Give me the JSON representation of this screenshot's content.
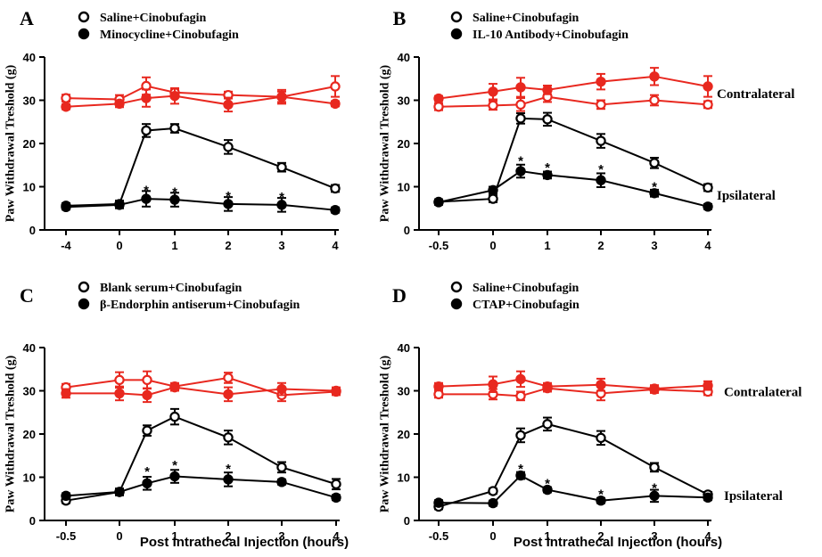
{
  "figure": {
    "xlabel": "Post Intrathecal Injection (hours)"
  },
  "chart_data": [
    {
      "type": "line",
      "panel_letter": "A",
      "ylabel": "Paw Withdrawal Treshold (g)",
      "ylim": [
        0,
        40
      ],
      "y_ticks": [
        "0",
        "10",
        "20",
        "30",
        "40"
      ],
      "x_tick_labels": [
        "-4",
        "0",
        "1",
        "2",
        "3",
        "4"
      ],
      "legend": [
        {
          "marker": "open-circle",
          "label": "Saline+Cinobufagin"
        },
        {
          "marker": "filled-circle",
          "label": "Minocycline+Cinobufagin"
        }
      ],
      "side_labels": [],
      "series": [
        {
          "name": "Saline+Cinobufagin",
          "side": "contralateral",
          "color": "#e8281f",
          "marker": "open-circle",
          "x": [
            -4,
            0,
            0.5,
            1,
            2,
            3,
            4
          ],
          "y": [
            30.5,
            30.2,
            33.3,
            31.8,
            31.2,
            30.8,
            33.2
          ],
          "err": [
            0.8,
            1.0,
            2.0,
            0.8,
            0.8,
            1.2,
            2.4
          ]
        },
        {
          "name": "Minocycline+Cinobufagin",
          "side": "contralateral",
          "color": "#e8281f",
          "marker": "filled-circle",
          "x": [
            -4,
            0,
            0.5,
            1,
            2,
            3,
            4
          ],
          "y": [
            28.5,
            29.2,
            30.5,
            31.0,
            29.0,
            30.8,
            29.2
          ],
          "err": [
            0.6,
            0.8,
            2.0,
            1.8,
            1.6,
            1.6,
            0.6
          ]
        },
        {
          "name": "Saline+Cinobufagin",
          "side": "ipsilateral",
          "color": "#000000",
          "marker": "open-circle",
          "x": [
            -4,
            0,
            0.5,
            1,
            2,
            3,
            4
          ],
          "y": [
            5.6,
            6.0,
            23.0,
            23.5,
            19.2,
            14.5,
            9.6
          ],
          "err": [
            0.6,
            0.8,
            1.5,
            1.0,
            1.6,
            1.0,
            0.8
          ]
        },
        {
          "name": "Minocycline+Cinobufagin",
          "side": "ipsilateral",
          "color": "#000000",
          "marker": "filled-circle",
          "x": [
            -4,
            0,
            0.5,
            1,
            2,
            3,
            4
          ],
          "y": [
            5.3,
            5.8,
            7.2,
            7.0,
            6.0,
            5.8,
            4.6
          ],
          "err": [
            0.6,
            0.8,
            1.8,
            1.6,
            1.6,
            1.6,
            0.6
          ]
        }
      ],
      "significance_marks": [
        {
          "x": 0.5,
          "y": 9.4,
          "text": "*"
        },
        {
          "x": 1,
          "y": 9.0,
          "text": "*"
        },
        {
          "x": 2,
          "y": 8.0,
          "text": "*"
        },
        {
          "x": 3,
          "y": 7.8,
          "text": "*"
        }
      ]
    },
    {
      "type": "line",
      "panel_letter": "B",
      "ylabel": "Paw Withdrawal Treshold (g)",
      "ylim": [
        0,
        40
      ],
      "y_ticks": [
        "0",
        "10",
        "20",
        "30",
        "40"
      ],
      "x_tick_labels": [
        "-0.5",
        "0",
        "1",
        "2",
        "3",
        "4"
      ],
      "legend": [
        {
          "marker": "open-circle",
          "label": "Saline+Cinobufagin"
        },
        {
          "marker": "filled-circle",
          "label": "IL-10 Antibody+Cinobufagin"
        }
      ],
      "side_labels": [
        {
          "text": "Contralateral",
          "y": 31.5
        },
        {
          "text": "Ipsilateral",
          "y": 8.0
        }
      ],
      "series": [
        {
          "name": "Saline+Cinobufagin",
          "side": "contralateral",
          "color": "#e8281f",
          "marker": "open-circle",
          "x": [
            -0.5,
            0,
            0.5,
            1,
            2,
            3,
            4
          ],
          "y": [
            28.5,
            28.8,
            29.0,
            30.8,
            29.0,
            30.0,
            29.0
          ],
          "err": [
            0.8,
            1.0,
            1.5,
            1.2,
            1.0,
            1.2,
            0.8
          ]
        },
        {
          "name": "IL-10 Antibody+Cinobufagin",
          "side": "contralateral",
          "color": "#e8281f",
          "marker": "filled-circle",
          "x": [
            -0.5,
            0,
            0.5,
            1,
            2,
            3,
            4
          ],
          "y": [
            30.4,
            32.0,
            33.0,
            32.4,
            34.3,
            35.5,
            33.2
          ],
          "err": [
            0.6,
            1.8,
            2.2,
            1.0,
            1.8,
            2.0,
            2.4
          ]
        },
        {
          "name": "Saline+Cinobufagin",
          "side": "ipsilateral",
          "color": "#000000",
          "marker": "open-circle",
          "x": [
            -0.5,
            0,
            0.5,
            1,
            2,
            3,
            4
          ],
          "y": [
            6.5,
            7.2,
            25.8,
            25.6,
            20.6,
            15.5,
            9.8
          ],
          "err": [
            0.6,
            0.8,
            1.2,
            1.5,
            1.6,
            1.2,
            0.8
          ]
        },
        {
          "name": "IL-10 Antibody+Cinobufagin",
          "side": "ipsilateral",
          "color": "#000000",
          "marker": "filled-circle",
          "x": [
            -0.5,
            0,
            0.5,
            1,
            2,
            3,
            4
          ],
          "y": [
            6.4,
            9.2,
            13.6,
            12.7,
            11.5,
            8.5,
            5.4
          ],
          "err": [
            0.6,
            0.8,
            1.5,
            0.8,
            1.6,
            0.8,
            0.6
          ]
        }
      ],
      "significance_marks": [
        {
          "x": 0.5,
          "y": 16.2,
          "text": "*"
        },
        {
          "x": 1,
          "y": 14.6,
          "text": "*"
        },
        {
          "x": 2,
          "y": 14.2,
          "text": "*"
        },
        {
          "x": 3,
          "y": 10.2,
          "text": "*"
        }
      ]
    },
    {
      "type": "line",
      "panel_letter": "C",
      "ylabel": "Paw Withdrawal Treshold (g)",
      "ylim": [
        0,
        40
      ],
      "y_ticks": [
        "0",
        "10",
        "20",
        "30",
        "40"
      ],
      "x_tick_labels": [
        "-0.5",
        "0",
        "1",
        "2",
        "3",
        "4"
      ],
      "legend": [
        {
          "marker": "open-circle",
          "label": "Blank serum+Cinobufagin"
        },
        {
          "marker": "filled-circle",
          "label": "β-Endorphin antiserum+Cinobufagin"
        }
      ],
      "side_labels": [],
      "series": [
        {
          "name": "Blank serum+Cinobufagin",
          "side": "contralateral",
          "color": "#e8281f",
          "marker": "open-circle",
          "x": [
            -0.5,
            0,
            0.5,
            1,
            2,
            3,
            4
          ],
          "y": [
            30.8,
            32.5,
            32.5,
            31.0,
            33.0,
            29.0,
            29.8
          ],
          "err": [
            0.8,
            1.8,
            2.0,
            0.8,
            1.2,
            1.4,
            0.8
          ]
        },
        {
          "name": "β-Endorphin antiserum+Cinobufagin",
          "side": "contralateral",
          "color": "#e8281f",
          "marker": "filled-circle",
          "x": [
            -0.5,
            0,
            0.5,
            1,
            2,
            3,
            4
          ],
          "y": [
            29.4,
            29.4,
            29.0,
            30.8,
            29.2,
            30.4,
            30.0
          ],
          "err": [
            1.0,
            1.6,
            1.6,
            0.8,
            1.6,
            1.4,
            0.8
          ]
        },
        {
          "name": "Blank serum+Cinobufagin",
          "side": "ipsilateral",
          "color": "#000000",
          "marker": "open-circle",
          "x": [
            -0.5,
            0,
            0.5,
            1,
            2,
            3,
            4
          ],
          "y": [
            4.6,
            6.6,
            20.8,
            24.0,
            19.2,
            12.3,
            8.4
          ],
          "err": [
            0.6,
            0.8,
            1.2,
            1.8,
            1.6,
            1.2,
            1.2
          ]
        },
        {
          "name": "β-Endorphin antiserum+Cinobufagin",
          "side": "ipsilateral",
          "color": "#000000",
          "marker": "filled-circle",
          "x": [
            -0.5,
            0,
            0.5,
            1,
            2,
            3,
            4
          ],
          "y": [
            5.7,
            6.6,
            8.6,
            10.2,
            9.5,
            8.9,
            5.3
          ],
          "err": [
            0.6,
            0.6,
            1.5,
            1.5,
            1.6,
            0.6,
            0.6
          ]
        }
      ],
      "significance_marks": [
        {
          "x": 0.5,
          "y": 11.5,
          "text": "*"
        },
        {
          "x": 1,
          "y": 13.0,
          "text": "*"
        },
        {
          "x": 2,
          "y": 12.2,
          "text": "*"
        }
      ]
    },
    {
      "type": "line",
      "panel_letter": "D",
      "ylabel": "Paw Withdrawal Treshold (g)",
      "ylim": [
        0,
        40
      ],
      "y_ticks": [
        "0",
        "10",
        "20",
        "30",
        "40"
      ],
      "x_tick_labels": [
        "-0.5",
        "0",
        "1",
        "2",
        "3",
        "4"
      ],
      "legend": [
        {
          "marker": "open-circle",
          "label": "Saline+Cinobufagin"
        },
        {
          "marker": "filled-circle",
          "label": "CTAP+Cinobufagin"
        }
      ],
      "side_labels": [
        {
          "text": "Contralateral",
          "y": 29.8
        },
        {
          "text": "Ipsilateral",
          "y": 5.8
        }
      ],
      "series": [
        {
          "name": "Saline+Cinobufagin",
          "side": "contralateral",
          "color": "#e8281f",
          "marker": "open-circle",
          "x": [
            -0.5,
            0,
            0.5,
            1,
            2,
            3,
            4
          ],
          "y": [
            29.2,
            29.2,
            28.8,
            30.6,
            29.4,
            30.3,
            29.8
          ],
          "err": [
            0.8,
            1.2,
            1.0,
            0.8,
            1.6,
            0.8,
            0.8
          ]
        },
        {
          "name": "CTAP+Cinobufagin",
          "side": "contralateral",
          "color": "#e8281f",
          "marker": "filled-circle",
          "x": [
            -0.5,
            0,
            0.5,
            1,
            2,
            3,
            4
          ],
          "y": [
            31.0,
            31.5,
            32.7,
            31.0,
            31.4,
            30.5,
            31.2
          ],
          "err": [
            0.8,
            1.8,
            1.8,
            0.8,
            1.4,
            0.8,
            1.0
          ]
        },
        {
          "name": "Saline+Cinobufagin",
          "side": "ipsilateral",
          "color": "#000000",
          "marker": "open-circle",
          "x": [
            -0.5,
            0,
            0.5,
            1,
            2,
            3,
            4
          ],
          "y": [
            3.2,
            6.8,
            19.7,
            22.3,
            19.1,
            12.3,
            6.0
          ],
          "err": [
            0.6,
            0.6,
            1.6,
            1.5,
            1.6,
            1.0,
            0.6
          ]
        },
        {
          "name": "CTAP+Cinobufagin",
          "side": "ipsilateral",
          "color": "#000000",
          "marker": "filled-circle",
          "x": [
            -0.5,
            0,
            0.5,
            1,
            2,
            3,
            4
          ],
          "y": [
            4.1,
            4.0,
            10.4,
            7.1,
            4.6,
            5.7,
            5.3
          ],
          "err": [
            0.6,
            0.6,
            0.8,
            0.6,
            0.6,
            1.4,
            0.6
          ]
        }
      ],
      "significance_marks": [
        {
          "x": 0.5,
          "y": 12.2,
          "text": "*"
        },
        {
          "x": 1,
          "y": 8.8,
          "text": "*"
        },
        {
          "x": 2,
          "y": 6.3,
          "text": "*"
        },
        {
          "x": 3,
          "y": 7.7,
          "text": "*"
        }
      ]
    }
  ]
}
